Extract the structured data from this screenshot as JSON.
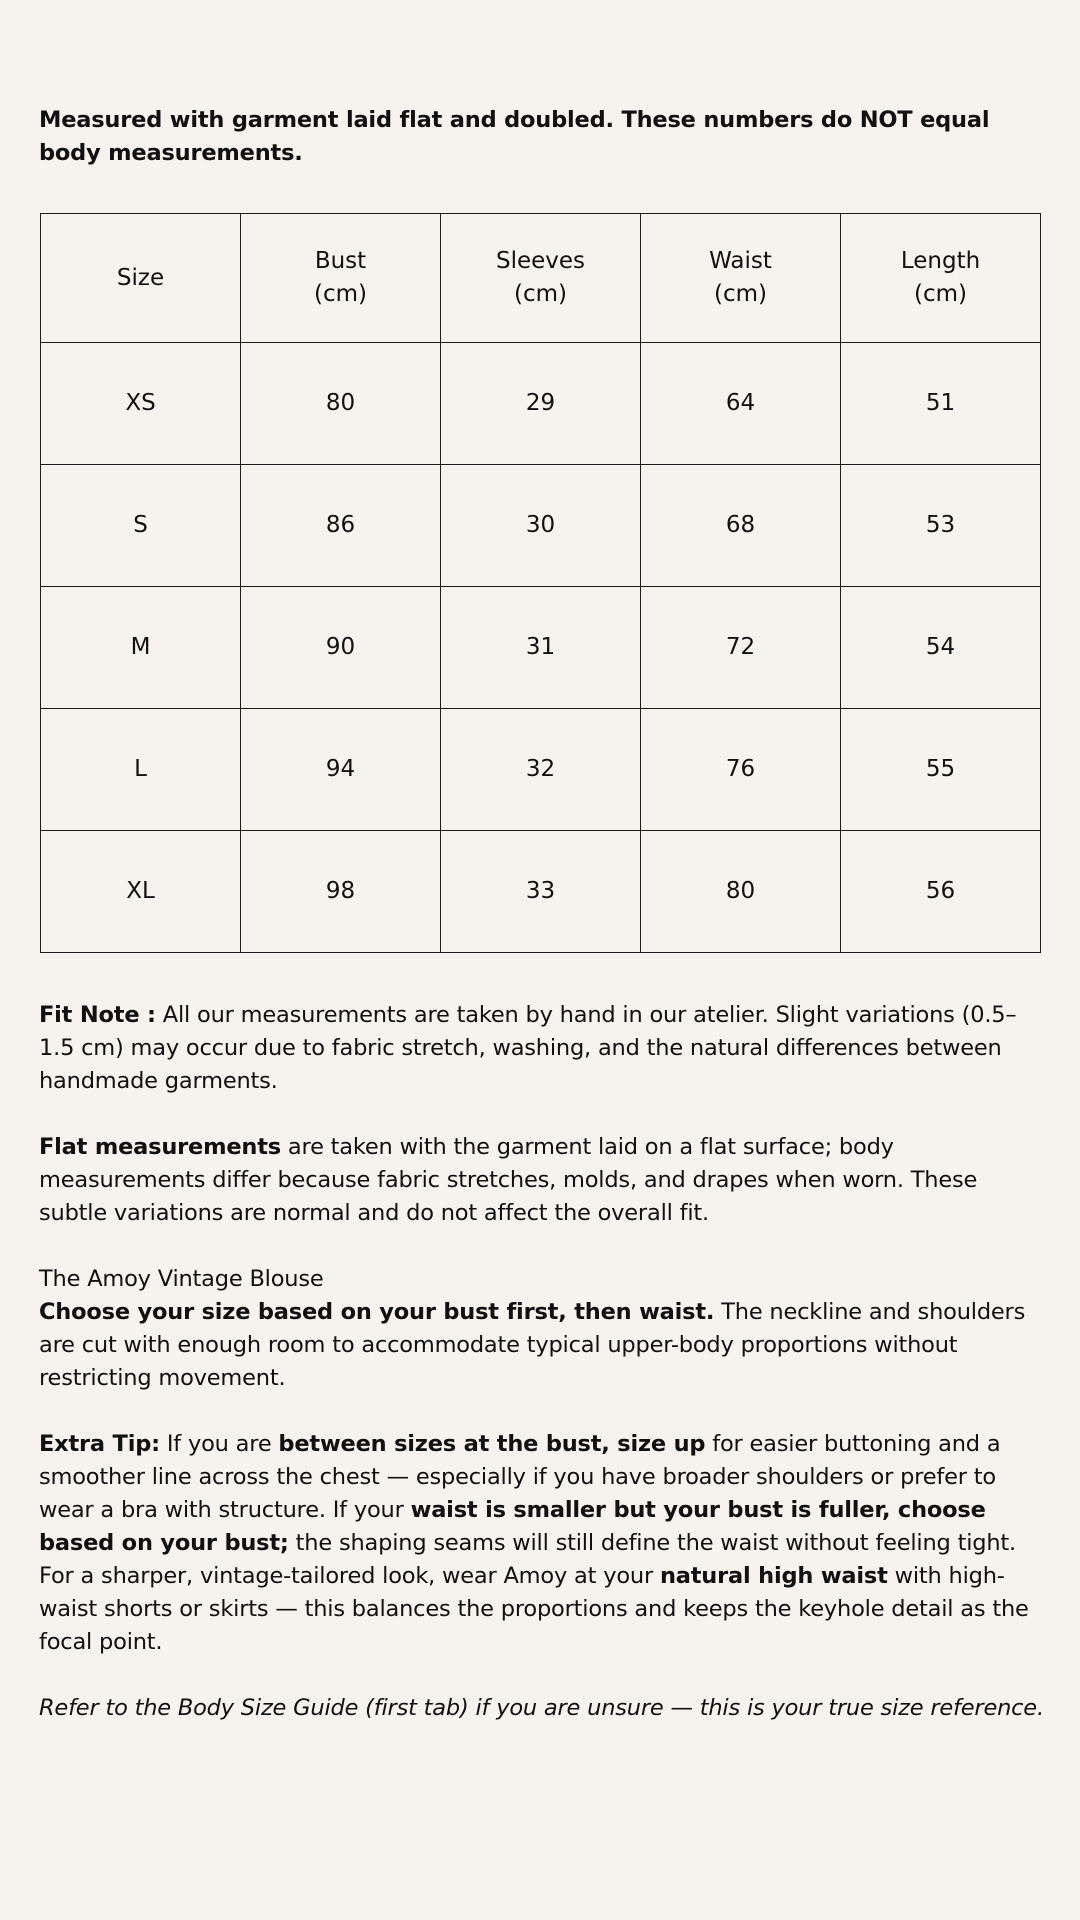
{
  "intro": "Measured with garment laid flat and doubled. These numbers do NOT equal body measurements.",
  "table": {
    "headers": [
      [
        "Size",
        ""
      ],
      [
        "Bust",
        "(cm)"
      ],
      [
        "Sleeves",
        "(cm)"
      ],
      [
        "Waist",
        "(cm)"
      ],
      [
        "Length",
        "(cm)"
      ]
    ],
    "rows": [
      [
        "XS",
        "80",
        "29",
        "64",
        "51"
      ],
      [
        "S",
        "86",
        "30",
        "68",
        "53"
      ],
      [
        "M",
        "90",
        "31",
        "72",
        "54"
      ],
      [
        "L",
        "94",
        "32",
        "76",
        "55"
      ],
      [
        "XL",
        "98",
        "33",
        "80",
        "56"
      ]
    ]
  },
  "fit_note": {
    "label": "Fit Note :",
    "text": " All our measurements are taken by hand in our atelier. Slight variations (0.5–1.5 cm) may occur due to fabric stretch, washing, and the natural differences between handmade garments."
  },
  "flat": {
    "label": "Flat measurements",
    "text": " are taken with the garment laid on a flat surface; body measurements differ because fabric stretches, molds, and drapes when worn. These subtle variations are normal and do not affect the overall fit."
  },
  "product": {
    "name": "The Amoy Vintage Blouse",
    "bold": "Choose your size based on your bust first, then waist.",
    "text": " The neckline and shoulders are cut with enough room to accommodate typical upper-body proportions without restricting movement."
  },
  "tip": {
    "label": "Extra Tip:",
    "t1": " If you are ",
    "b1": "between sizes at the bust, size up",
    "t2": " for easier buttoning and a smoother line across the chest — especially if you have broader shoulders or prefer to wear a bra with structure. If your ",
    "b2": "waist is smaller but your bust is fuller, choose based on your bust;",
    "t3": " the shaping seams will still define the waist without feeling tight. For a sharper, vintage-tailored look, wear Amoy at your ",
    "b3": "natural high waist",
    "t4": " with high-waist shorts or skirts — this balances the proportions and keeps the keyhole detail as the focal point."
  },
  "refer": "Refer to the Body Size Guide (first tab) if you are unsure — this is your true size reference."
}
